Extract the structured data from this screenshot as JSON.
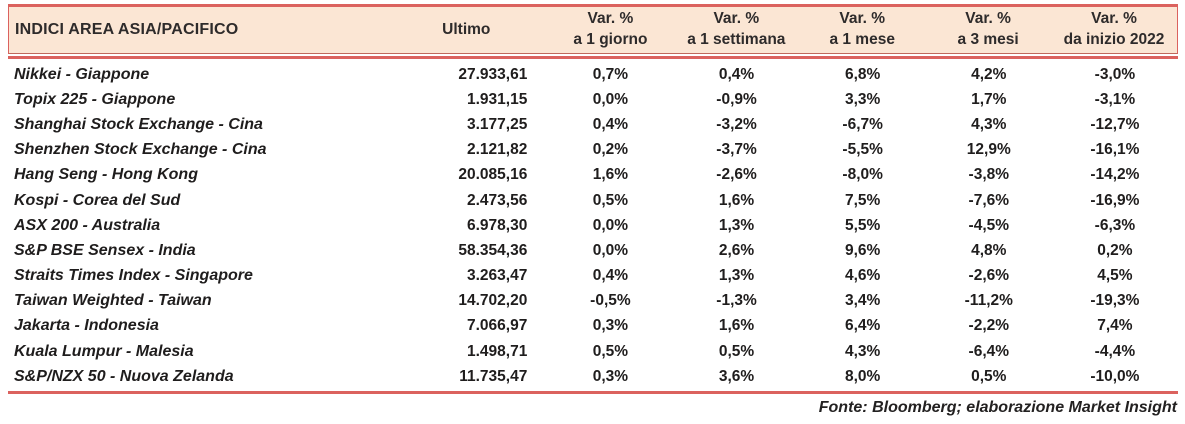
{
  "header": {
    "title": "INDICI AREA ASIA/PACIFICO",
    "ultimo_label": "Ultimo",
    "var_columns": [
      {
        "line1": "Var. %",
        "line2": "a 1 giorno"
      },
      {
        "line1": "Var. %",
        "line2": "a 1 settimana"
      },
      {
        "line1": "Var. %",
        "line2": "a 1 mese"
      },
      {
        "line1": "Var. %",
        "line2": "a 3 mesi"
      },
      {
        "line1": "Var. %",
        "line2": "da inizio 2022"
      }
    ]
  },
  "chart_data": {
    "type": "table",
    "columns": [
      "INDICI AREA ASIA/PACIFICO",
      "Ultimo",
      "Var. % a 1 giorno",
      "Var. % a 1 settimana",
      "Var. % a 1 mese",
      "Var. % a 3 mesi",
      "Var. % da inizio 2022"
    ],
    "rows": [
      [
        "Nikkei - Giappone",
        "27.933,61",
        "0,7%",
        "0,4%",
        "6,8%",
        "4,2%",
        "-3,0%"
      ],
      [
        "Topix 225 - Giappone",
        "1.931,15",
        "0,0%",
        "-0,9%",
        "3,3%",
        "1,7%",
        "-3,1%"
      ],
      [
        "Shanghai Stock Exchange - Cina",
        "3.177,25",
        "0,4%",
        "-3,2%",
        "-6,7%",
        "4,3%",
        "-12,7%"
      ],
      [
        "Shenzhen Stock Exchange - Cina",
        "2.121,82",
        "0,2%",
        "-3,7%",
        "-5,5%",
        "12,9%",
        "-16,1%"
      ],
      [
        "Hang Seng - Hong Kong",
        "20.085,16",
        "1,6%",
        "-2,6%",
        "-8,0%",
        "-3,8%",
        "-14,2%"
      ],
      [
        "Kospi - Corea del Sud",
        "2.473,56",
        "0,5%",
        "1,6%",
        "7,5%",
        "-7,6%",
        "-16,9%"
      ],
      [
        "ASX 200 - Australia",
        "6.978,30",
        "0,0%",
        "1,3%",
        "5,5%",
        "-4,5%",
        "-6,3%"
      ],
      [
        "S&P BSE Sensex - India",
        "58.354,36",
        "0,0%",
        "2,6%",
        "9,6%",
        "4,8%",
        "0,2%"
      ],
      [
        "Straits Times Index - Singapore",
        "3.263,47",
        "0,4%",
        "1,3%",
        "4,6%",
        "-2,6%",
        "4,5%"
      ],
      [
        "Taiwan Weighted - Taiwan",
        "14.702,20",
        "-0,5%",
        "-1,3%",
        "3,4%",
        "-11,2%",
        "-19,3%"
      ],
      [
        "Jakarta - Indonesia",
        "7.066,97",
        "0,3%",
        "1,6%",
        "6,4%",
        "-2,2%",
        "7,4%"
      ],
      [
        "Kuala Lumpur - Malesia",
        "1.498,71",
        "0,5%",
        "0,5%",
        "4,3%",
        "-6,4%",
        "-4,4%"
      ],
      [
        "S&P/NZX 50 - Nuova Zelanda",
        "11.735,47",
        "0,3%",
        "3,6%",
        "8,0%",
        "0,5%",
        "-10,0%"
      ]
    ]
  },
  "footer": {
    "source": "Fonte: Bloomberg; elaborazione Market Insight"
  },
  "colors": {
    "band_bg": "#fbe6d4",
    "rule_red": "#db625e",
    "text": "#1f1d1d"
  }
}
